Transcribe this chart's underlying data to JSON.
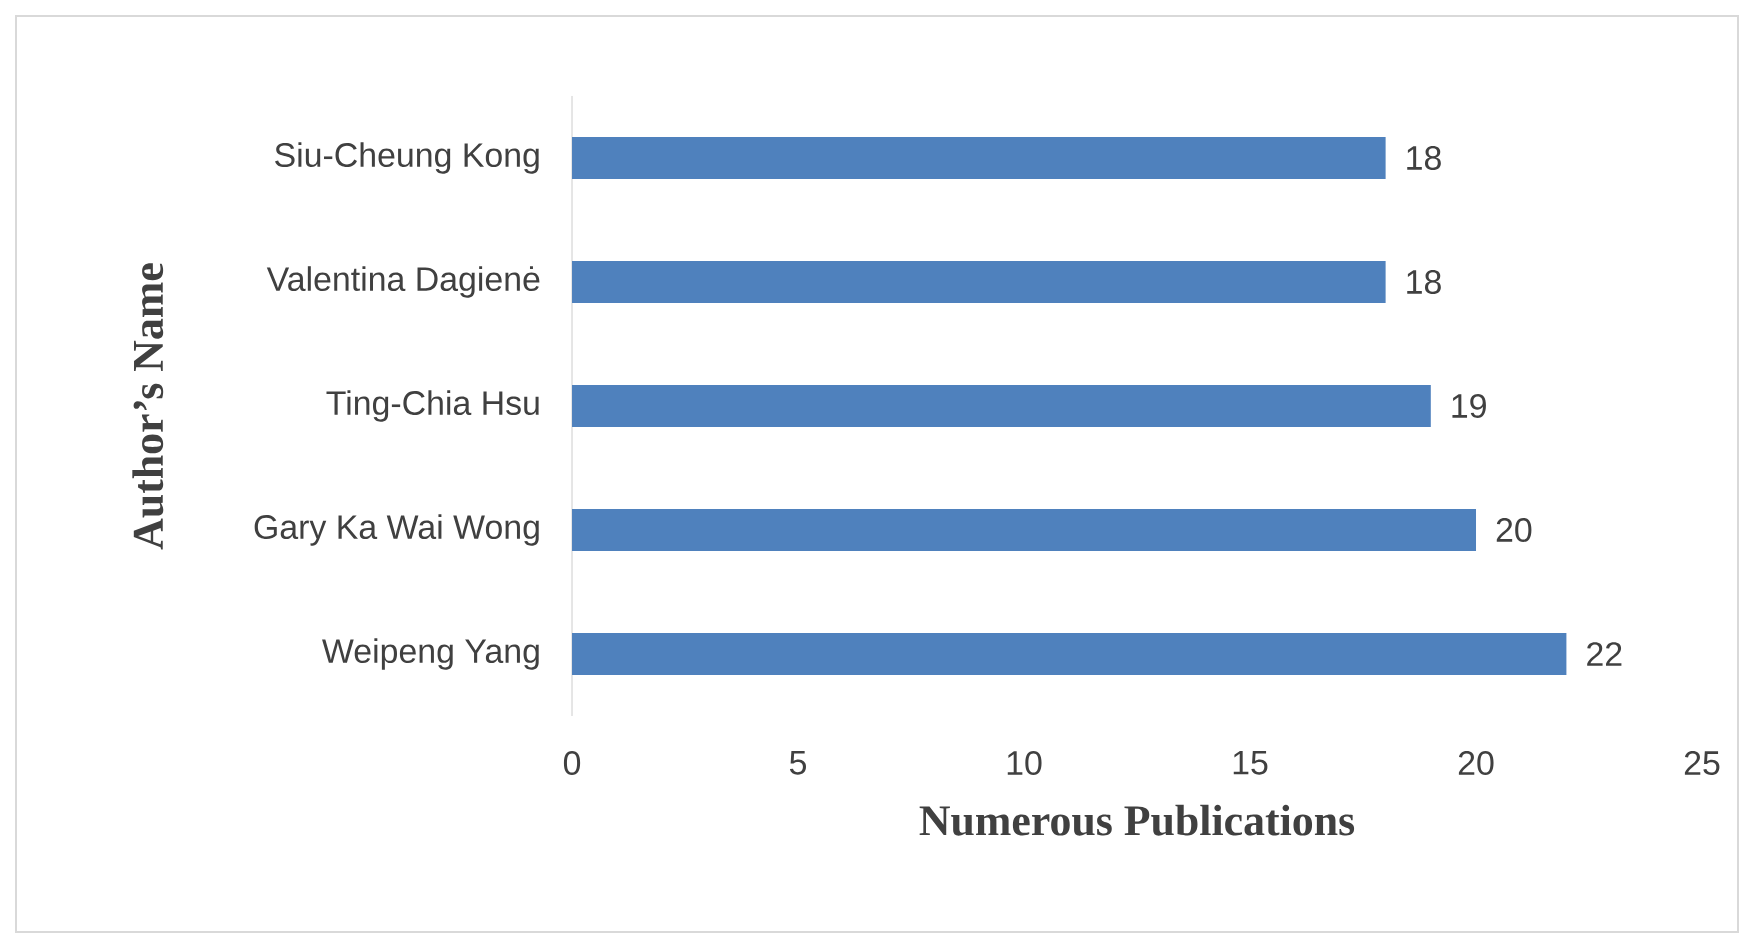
{
  "chart_data": {
    "type": "bar",
    "orientation": "horizontal",
    "xlabel": "Numerous Publications",
    "ylabel": "Author’s Name",
    "categories": [
      "Siu-Cheung Kong",
      "Valentina Dagienė",
      "Ting-Chia Hsu",
      "Gary Ka Wai Wong",
      "Weipeng Yang"
    ],
    "values": [
      18,
      18,
      19,
      20,
      22
    ],
    "color": "#4f81bd",
    "xlim": [
      0,
      25
    ],
    "xticks": [
      0,
      5,
      10,
      15,
      20,
      25
    ],
    "data_labels": true,
    "grid": false
  }
}
